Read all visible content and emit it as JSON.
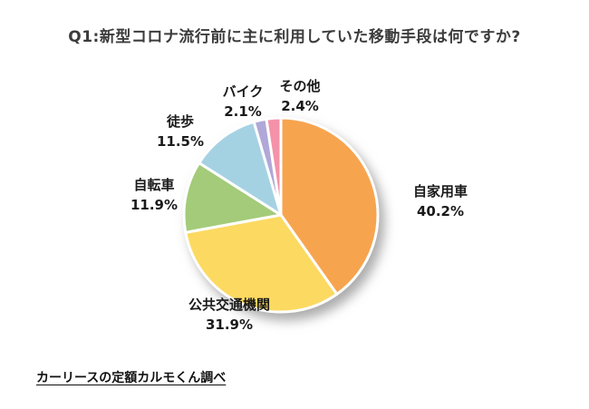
{
  "page": {
    "background_color": "#ffffff"
  },
  "chart_data": {
    "type": "pie",
    "title": "Q1:新型コロナ流行前に主に利用していた移動手段は何ですか?",
    "start_angle_deg": 0,
    "direction": "clockwise",
    "legend_position": "labels-around-pie",
    "segments": [
      {
        "id": "private-car",
        "label": "自家用車",
        "value": 40.2,
        "pct_text": "40.2%",
        "color": "#F7A44F"
      },
      {
        "id": "public-transit",
        "label": "公共交通機関",
        "value": 31.9,
        "pct_text": "31.9%",
        "color": "#FCD961"
      },
      {
        "id": "bicycle",
        "label": "自転車",
        "value": 11.9,
        "pct_text": "11.9%",
        "color": "#A3CB79"
      },
      {
        "id": "walking",
        "label": "徒歩",
        "value": 11.5,
        "pct_text": "11.5%",
        "color": "#A5D2E3"
      },
      {
        "id": "motorcycle",
        "label": "バイク",
        "value": 2.1,
        "pct_text": "2.1%",
        "color": "#AFA8D8"
      },
      {
        "id": "other",
        "label": "その他",
        "value": 2.4,
        "pct_text": "2.4%",
        "color": "#F492A9"
      }
    ],
    "slice_border_color": "#ffffff"
  },
  "footer": {
    "source": "カーリースの定額カルモくん調べ"
  }
}
